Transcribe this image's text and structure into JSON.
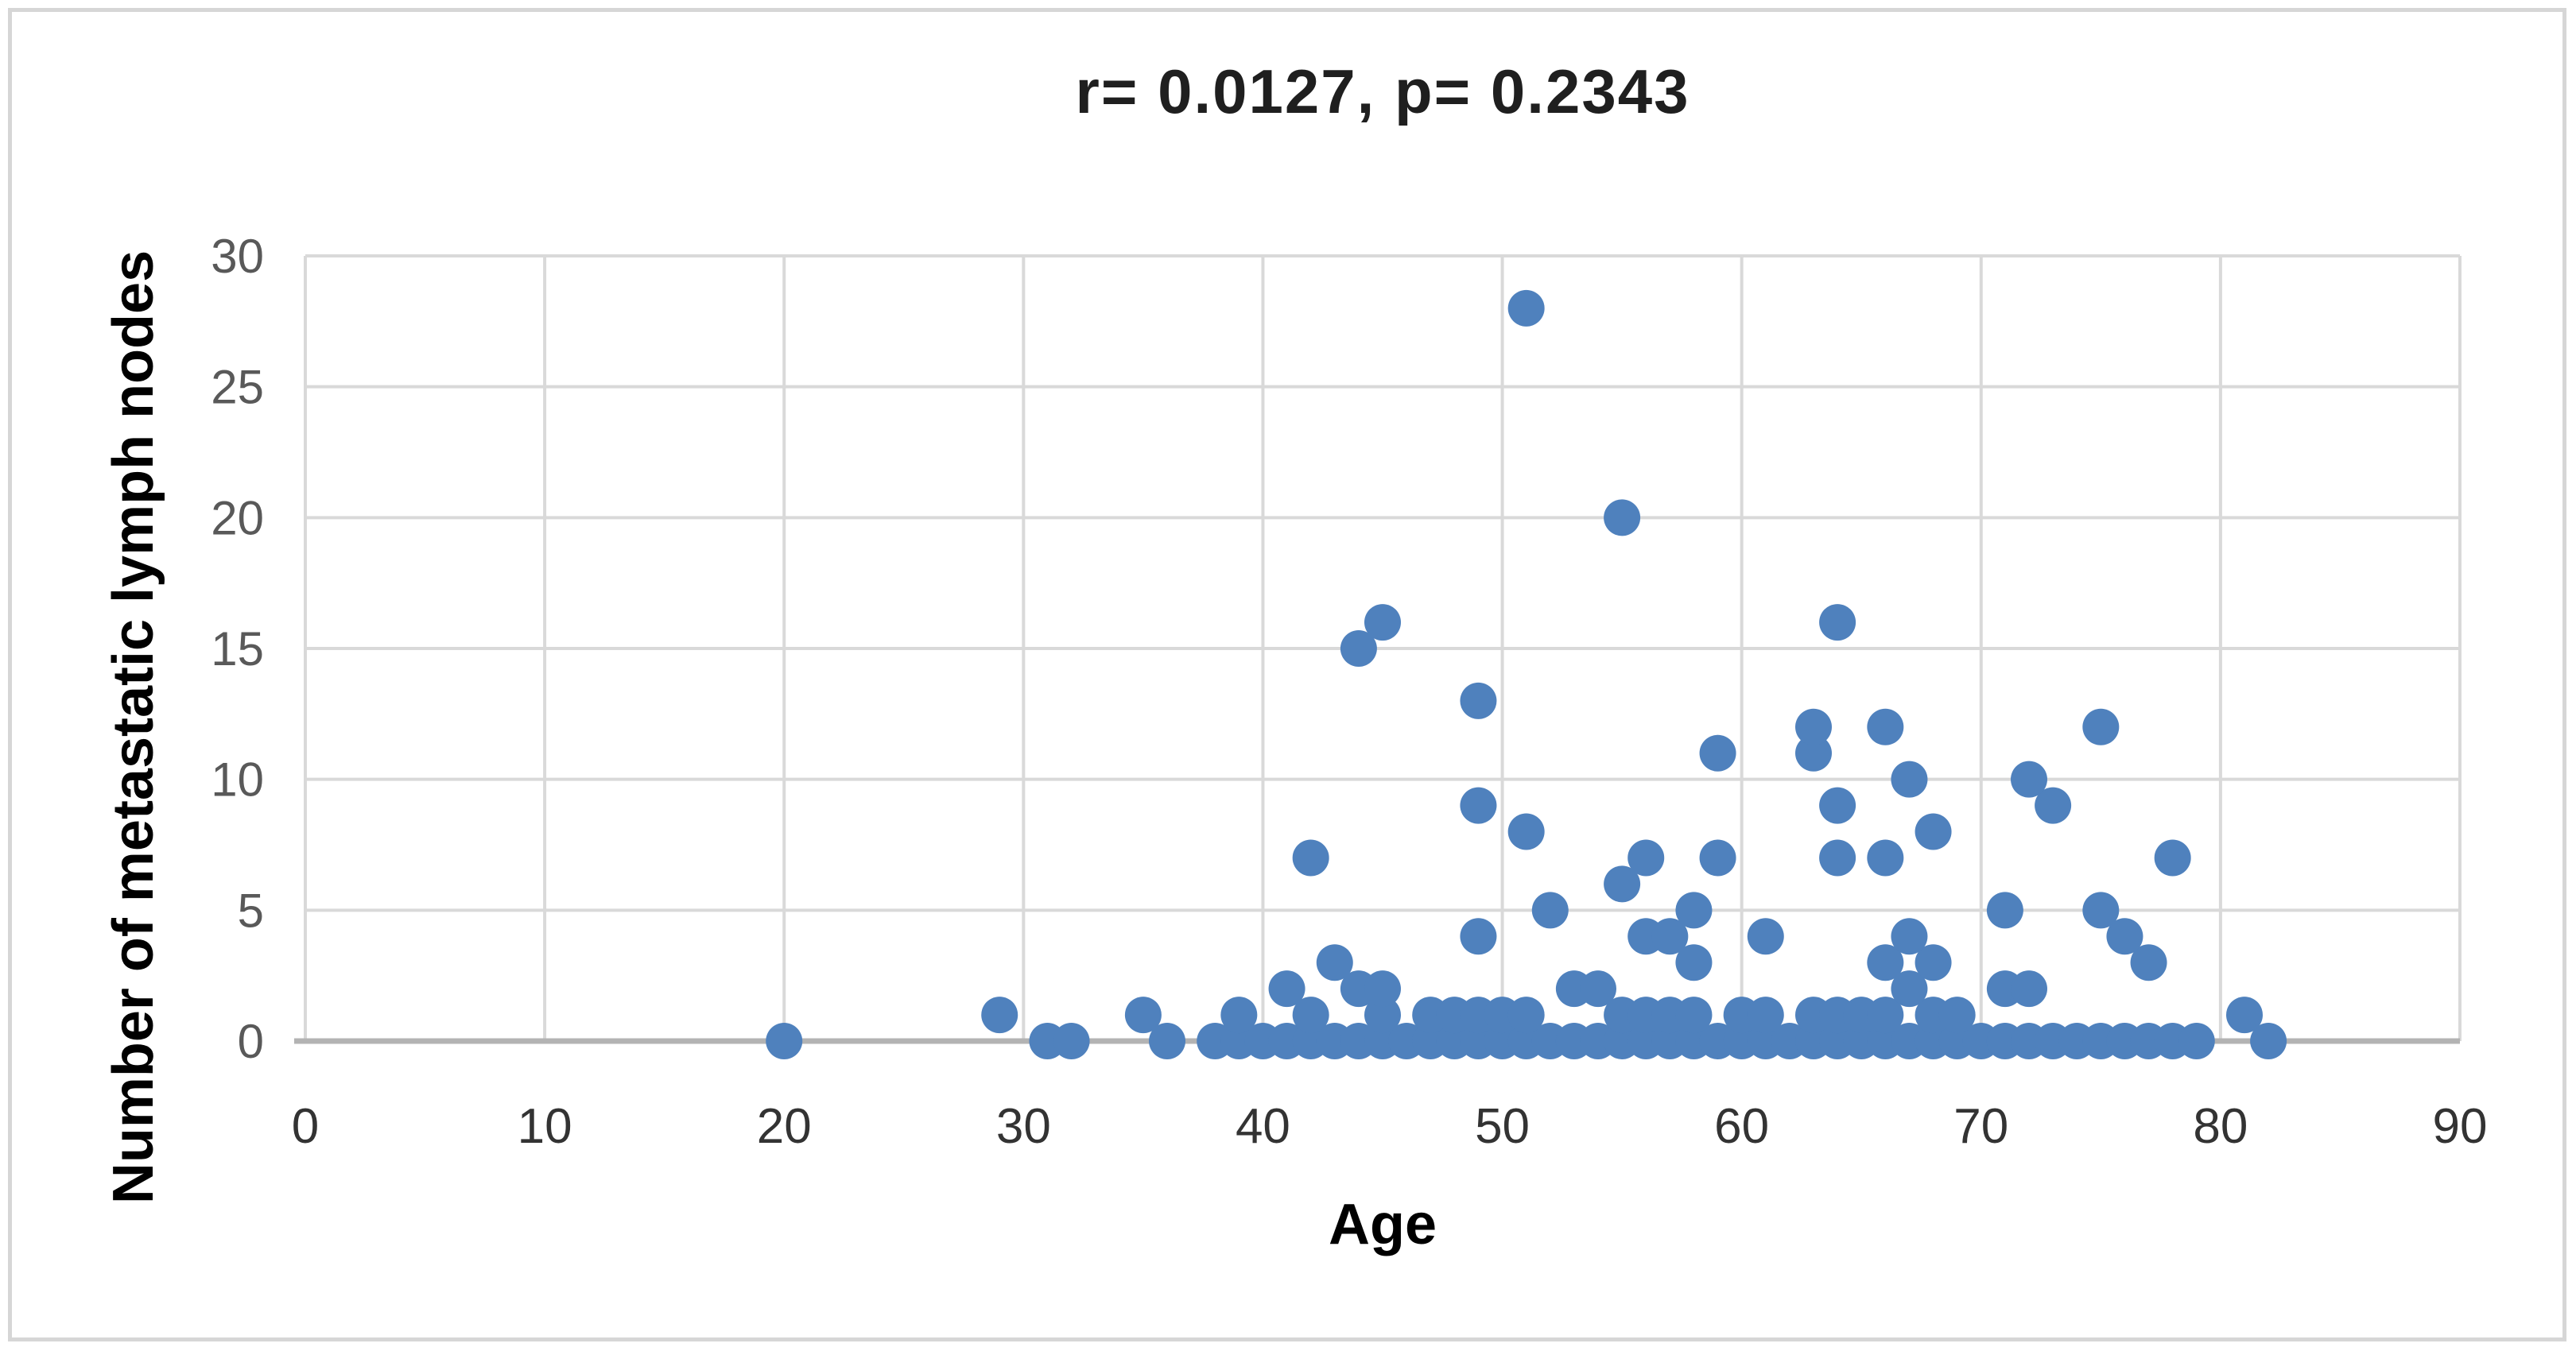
{
  "chart_data": {
    "type": "scatter",
    "title": "r= 0.0127, p= 0.2343",
    "xlabel": "Age",
    "ylabel": "Number of metastatic lymph nodes",
    "xlim": [
      0,
      90
    ],
    "ylim": [
      0,
      30
    ],
    "xticks": [
      0,
      10,
      20,
      30,
      40,
      50,
      60,
      70,
      80,
      90
    ],
    "yticks": [
      0,
      5,
      10,
      15,
      20,
      25,
      30
    ],
    "grid": true,
    "legend_position": "none",
    "marker_color": "#4f81bd",
    "gridline_color": "#d9d9d9",
    "axis_line_color": "#b3b3b3",
    "x_tick_color": "#333333",
    "y_tick_color": "#595959",
    "points": [
      [
        20,
        0
      ],
      [
        31,
        0
      ],
      [
        32,
        0
      ],
      [
        36,
        0
      ],
      [
        38,
        0
      ],
      [
        39,
        0
      ],
      [
        40,
        0
      ],
      [
        41,
        0
      ],
      [
        42,
        0
      ],
      [
        43,
        0
      ],
      [
        44,
        0
      ],
      [
        45,
        0
      ],
      [
        46,
        0
      ],
      [
        47,
        0
      ],
      [
        48,
        0
      ],
      [
        49,
        0
      ],
      [
        50,
        0
      ],
      [
        51,
        0
      ],
      [
        52,
        0
      ],
      [
        53,
        0
      ],
      [
        54,
        0
      ],
      [
        55,
        0
      ],
      [
        56,
        0
      ],
      [
        57,
        0
      ],
      [
        58,
        0
      ],
      [
        59,
        0
      ],
      [
        60,
        0
      ],
      [
        61,
        0
      ],
      [
        62,
        0
      ],
      [
        63,
        0
      ],
      [
        64,
        0
      ],
      [
        65,
        0
      ],
      [
        66,
        0
      ],
      [
        67,
        0
      ],
      [
        68,
        0
      ],
      [
        69,
        0
      ],
      [
        70,
        0
      ],
      [
        71,
        0
      ],
      [
        72,
        0
      ],
      [
        73,
        0
      ],
      [
        74,
        0
      ],
      [
        75,
        0
      ],
      [
        76,
        0
      ],
      [
        77,
        0
      ],
      [
        78,
        0
      ],
      [
        79,
        0
      ],
      [
        82,
        0
      ],
      [
        29,
        1
      ],
      [
        35,
        1
      ],
      [
        39,
        1
      ],
      [
        42,
        1
      ],
      [
        45,
        1
      ],
      [
        47,
        1
      ],
      [
        48,
        1
      ],
      [
        49,
        1
      ],
      [
        50,
        1
      ],
      [
        51,
        1
      ],
      [
        55,
        1
      ],
      [
        56,
        1
      ],
      [
        57,
        1
      ],
      [
        58,
        1
      ],
      [
        60,
        1
      ],
      [
        61,
        1
      ],
      [
        63,
        1
      ],
      [
        64,
        1
      ],
      [
        65,
        1
      ],
      [
        66,
        1
      ],
      [
        68,
        1
      ],
      [
        69,
        1
      ],
      [
        81,
        1
      ],
      [
        41,
        2
      ],
      [
        44,
        2
      ],
      [
        45,
        2
      ],
      [
        53,
        2
      ],
      [
        54,
        2
      ],
      [
        67,
        2
      ],
      [
        71,
        2
      ],
      [
        72,
        2
      ],
      [
        43,
        3
      ],
      [
        58,
        3
      ],
      [
        66,
        3
      ],
      [
        68,
        3
      ],
      [
        77,
        3
      ],
      [
        49,
        4
      ],
      [
        56,
        4
      ],
      [
        57,
        4
      ],
      [
        61,
        4
      ],
      [
        67,
        4
      ],
      [
        76,
        4
      ],
      [
        52,
        5
      ],
      [
        58,
        5
      ],
      [
        71,
        5
      ],
      [
        75,
        5
      ],
      [
        55,
        6
      ],
      [
        42,
        7
      ],
      [
        56,
        7
      ],
      [
        59,
        7
      ],
      [
        64,
        7
      ],
      [
        66,
        7
      ],
      [
        78,
        7
      ],
      [
        51,
        8
      ],
      [
        68,
        8
      ],
      [
        49,
        9
      ],
      [
        64,
        9
      ],
      [
        73,
        9
      ],
      [
        67,
        10
      ],
      [
        72,
        10
      ],
      [
        59,
        11
      ],
      [
        63,
        11
      ],
      [
        63,
        12
      ],
      [
        66,
        12
      ],
      [
        75,
        12
      ],
      [
        49,
        13
      ],
      [
        44,
        15
      ],
      [
        45,
        16
      ],
      [
        64,
        16
      ],
      [
        55,
        20
      ],
      [
        51,
        28
      ]
    ]
  }
}
